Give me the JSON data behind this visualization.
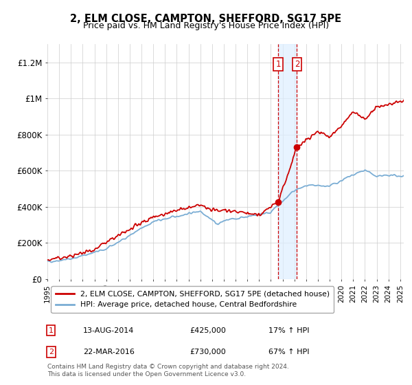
{
  "title": "2, ELM CLOSE, CAMPTON, SHEFFORD, SG17 5PE",
  "subtitle": "Price paid vs. HM Land Registry's House Price Index (HPI)",
  "legend_line1": "2, ELM CLOSE, CAMPTON, SHEFFORD, SG17 5PE (detached house)",
  "legend_line2": "HPI: Average price, detached house, Central Bedfordshire",
  "transaction1_label": "1",
  "transaction1_date": "13-AUG-2014",
  "transaction1_price": "£425,000",
  "transaction1_hpi": "17% ↑ HPI",
  "transaction2_label": "2",
  "transaction2_date": "22-MAR-2016",
  "transaction2_price": "£730,000",
  "transaction2_hpi": "67% ↑ HPI",
  "footnote": "Contains HM Land Registry data © Crown copyright and database right 2024.\nThis data is licensed under the Open Government Licence v3.0.",
  "red_color": "#cc0000",
  "blue_color": "#7aadd4",
  "shading_color": "#ddeeff",
  "vline_color": "#cc0000",
  "ylim": [
    0,
    1300000
  ],
  "yticks": [
    0,
    200000,
    400000,
    600000,
    800000,
    1000000,
    1200000
  ],
  "ytick_labels": [
    "£0",
    "£200K",
    "£400K",
    "£600K",
    "£800K",
    "£1M",
    "£1.2M"
  ],
  "xlim_start": 1995,
  "xlim_end": 2025.3,
  "transaction1_year": 2014.62,
  "transaction2_year": 2016.22
}
